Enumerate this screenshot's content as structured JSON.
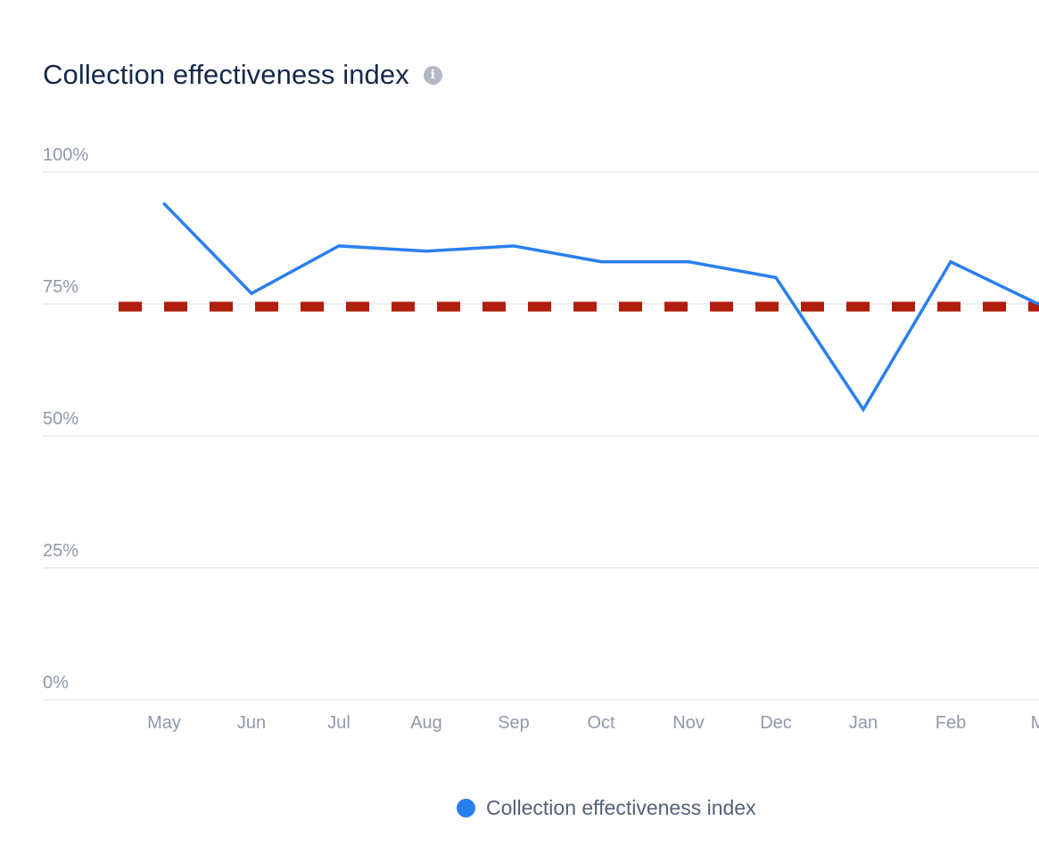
{
  "header": {
    "title": "Collection effectiveness index",
    "info_icon": "info-icon"
  },
  "colors": {
    "series": "#2a7ff0",
    "target": "#b01e0e",
    "grid": "#eceef2",
    "tick": "#8f99ab",
    "title": "#17284a"
  },
  "chart_data": {
    "type": "line",
    "title": "Collection effectiveness index",
    "xlabel": "",
    "ylabel": "",
    "categories": [
      "May",
      "Jun",
      "Jul",
      "Aug",
      "Sep",
      "Oct",
      "Nov",
      "Dec",
      "Jan",
      "Feb",
      "Mar"
    ],
    "x_tick_labels": [
      "May",
      "Jun",
      "Jul",
      "Aug",
      "Sep",
      "Oct",
      "Nov",
      "Dec",
      "Jan",
      "Feb",
      "M"
    ],
    "y_ticks": [
      0,
      25,
      50,
      75,
      100
    ],
    "y_tick_labels": [
      "0%",
      "25%",
      "50%",
      "75%",
      "100%"
    ],
    "ylim": [
      0,
      100
    ],
    "grid": true,
    "legend_position": "bottom",
    "series": [
      {
        "name": "Collection effectiveness index",
        "values": [
          94,
          77,
          86,
          85,
          86,
          83,
          83,
          80,
          55,
          83,
          75
        ]
      }
    ],
    "reference_line": {
      "value": 74.5,
      "style": "dashed"
    }
  },
  "legend": {
    "items": [
      {
        "label": "Collection effectiveness index"
      }
    ]
  }
}
